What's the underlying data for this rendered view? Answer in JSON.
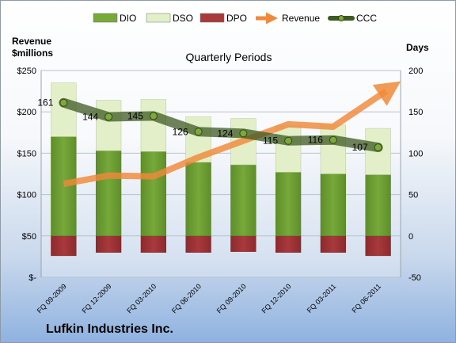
{
  "left_axis_title": [
    "Revenue",
    "$millions"
  ],
  "right_axis_title": "Days",
  "subtitle": "Quarterly Periods",
  "company": "Lufkin Industries Inc.",
  "colors": {
    "dio": "#76a83a",
    "dso": "#e3efc8",
    "dpo": "#a8393c",
    "revenue": "#f0893a",
    "ccc_line": "#3d5a21",
    "ccc_marker": "#7ea83a"
  },
  "chart_data": {
    "type": "bar",
    "categories": [
      "FQ 09-2009",
      "FQ 12-2009",
      "FQ 03-2010",
      "FQ 06-2010",
      "FQ 09-2010",
      "FQ 12-2010",
      "FQ 03-2011",
      "FQ 06-2011"
    ],
    "series": [
      {
        "name": "DIO",
        "type": "stacked-bar",
        "axis": "right",
        "values": [
          120,
          103,
          102,
          89,
          86,
          77,
          75,
          74
        ]
      },
      {
        "name": "DSO",
        "type": "stacked-bar",
        "axis": "right",
        "values": [
          65,
          61,
          63,
          55,
          56,
          56,
          59,
          56
        ]
      },
      {
        "name": "DPO",
        "type": "negative-bar",
        "axis": "right",
        "values": [
          -24,
          -20,
          -20,
          -20,
          -19,
          -20,
          -20,
          -24
        ]
      },
      {
        "name": "Revenue",
        "type": "line-arrow",
        "axis": "left",
        "values": [
          113,
          123,
          122,
          145,
          165,
          185,
          182,
          225
        ]
      },
      {
        "name": "CCC",
        "type": "line",
        "axis": "right",
        "values": [
          161,
          144,
          145,
          126,
          124,
          115,
          116,
          107
        ]
      }
    ],
    "ccc_labels": [
      "161",
      "144",
      "145",
      "126",
      "124",
      "115",
      "116",
      "107"
    ],
    "left_axis": {
      "min": 0,
      "max": 250,
      "ticks": [
        "$-",
        "$50",
        "$100",
        "$150",
        "$200",
        "$250"
      ],
      "values": [
        0,
        50,
        100,
        150,
        200,
        250
      ]
    },
    "right_axis": {
      "min": -50,
      "max": 200,
      "ticks": [
        "-50",
        "0",
        "50",
        "100",
        "150",
        "200"
      ],
      "values": [
        -50,
        0,
        50,
        100,
        150,
        200
      ]
    },
    "legend": [
      "DIO",
      "DSO",
      "DPO",
      "Revenue",
      "CCC"
    ],
    "legend_position": "top"
  }
}
